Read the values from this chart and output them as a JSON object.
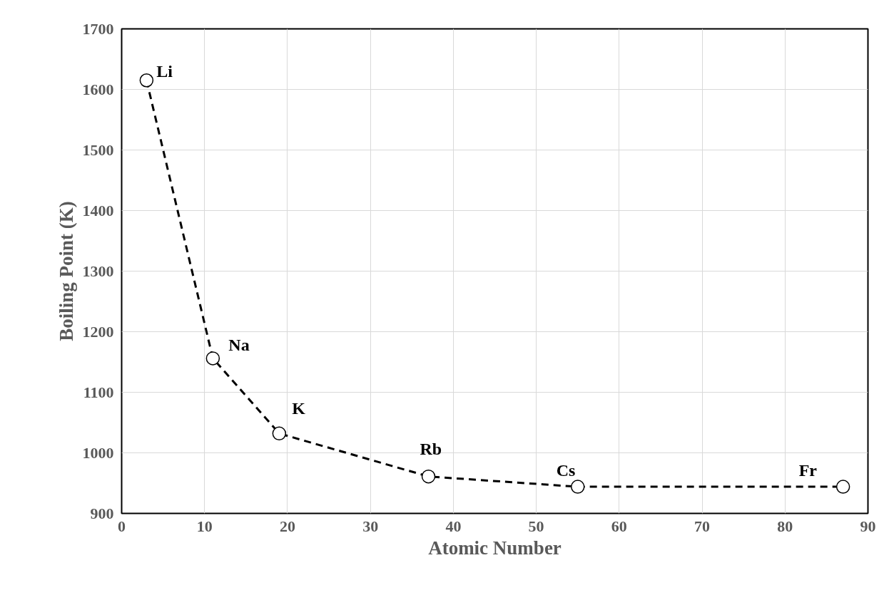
{
  "chart_data": {
    "type": "line",
    "xlabel": "Atomic Number",
    "ylabel": "Boiling Point (K)",
    "x": [
      3,
      11,
      19,
      37,
      55,
      87
    ],
    "series": [
      {
        "color": "#000000",
        "values": [
          1615,
          1156,
          1032,
          961,
          944,
          944
        ]
      }
    ],
    "xlim": [
      0,
      90
    ],
    "xticks": [
      0,
      10,
      20,
      30,
      40,
      50,
      60,
      70,
      80,
      90
    ],
    "ylim": [
      900,
      1700
    ],
    "yticks": [
      900,
      1000,
      1100,
      1200,
      1300,
      1400,
      1500,
      1600,
      1700
    ],
    "grid": true,
    "marker": "circle",
    "line_style": "dashed",
    "annotations": [
      {
        "text": "Li",
        "x": 3,
        "y": 1615
      },
      {
        "text": "Na",
        "x": 11,
        "y": 1156
      },
      {
        "text": "K",
        "x": 19,
        "y": 1032
      },
      {
        "text": "Rb",
        "x": 37,
        "y": 961
      },
      {
        "text": "Cs",
        "x": 55,
        "y": 944
      },
      {
        "text": "Fr",
        "x": 87,
        "y": 944
      }
    ]
  }
}
